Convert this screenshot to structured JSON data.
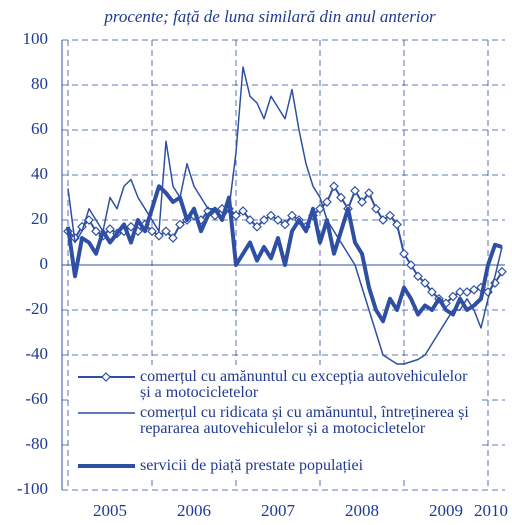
{
  "chart_data": {
    "type": "line",
    "title": "procente; față de luna similară din anul anterior",
    "categories": [
      null,
      null,
      null,
      null,
      null,
      null,
      "2005",
      null,
      null,
      null,
      null,
      null,
      null,
      null,
      null,
      null,
      null,
      null,
      "2006",
      null,
      null,
      null,
      null,
      null,
      null,
      null,
      null,
      null,
      null,
      null,
      "2007",
      null,
      null,
      null,
      null,
      null,
      null,
      null,
      null,
      null,
      null,
      null,
      "2008",
      null,
      null,
      null,
      null,
      null,
      null,
      null,
      null,
      null,
      null,
      null,
      "2009",
      null,
      null,
      null,
      null,
      null,
      null,
      "2010",
      null
    ],
    "series": [
      {
        "name": "comerțul cu amănuntul cu excepția autovehiculelor și a motocicletelor",
        "color": "#2e4fa3",
        "marker": "diamond",
        "width": 2,
        "values": [
          15,
          12,
          17,
          20,
          15,
          13,
          16,
          14,
          15,
          17,
          15,
          18,
          15,
          13,
          15,
          12,
          18,
          20,
          22,
          20,
          24,
          22,
          25,
          25,
          22,
          24,
          20,
          17,
          20,
          22,
          20,
          18,
          22,
          20,
          17,
          22,
          25,
          28,
          35,
          30,
          25,
          33,
          28,
          32,
          25,
          20,
          22,
          18,
          5,
          0,
          -5,
          -8,
          -12,
          -15,
          -17,
          -14,
          -12,
          -12,
          -11,
          -10,
          -12,
          -8,
          -3
        ]
      },
      {
        "name": "comerțul cu ridicata și cu amănuntul, întreținerea și repararea autovehiculelor și a motocicletelor",
        "color": "#2e4fa3",
        "width": 1.5,
        "values": [
          34,
          10,
          15,
          25,
          20,
          15,
          30,
          25,
          35,
          38,
          30,
          25,
          20,
          15,
          55,
          35,
          30,
          45,
          35,
          30,
          25,
          25,
          20,
          25,
          50,
          88,
          75,
          72,
          65,
          75,
          70,
          65,
          78,
          60,
          45,
          35,
          30,
          20,
          15,
          10,
          5,
          0,
          -10,
          -20,
          -30,
          -40,
          -42,
          -44,
          -44,
          -43,
          -42,
          -40,
          -35,
          -30,
          -25,
          -20,
          -20,
          -15,
          -20,
          -28,
          -15,
          -5,
          8
        ]
      },
      {
        "name": "servicii de piață prestate populației",
        "color": "#2e4fa3",
        "width": 4,
        "values": [
          17,
          -5,
          12,
          10,
          5,
          15,
          10,
          14,
          18,
          10,
          20,
          15,
          25,
          35,
          32,
          28,
          30,
          20,
          25,
          15,
          22,
          25,
          20,
          30,
          0,
          5,
          10,
          2,
          8,
          3,
          12,
          0,
          15,
          20,
          15,
          25,
          10,
          20,
          5,
          15,
          25,
          10,
          5,
          -10,
          -20,
          -25,
          -15,
          -20,
          -10,
          -15,
          -22,
          -18,
          -20,
          -15,
          -20,
          -22,
          -15,
          -20,
          -18,
          -15,
          0,
          9,
          8
        ]
      }
    ],
    "ylim": [
      -100,
      100
    ],
    "yticks": [
      -100,
      -80,
      -60,
      -40,
      -20,
      0,
      20,
      40,
      60,
      80,
      100
    ],
    "grid": true
  }
}
